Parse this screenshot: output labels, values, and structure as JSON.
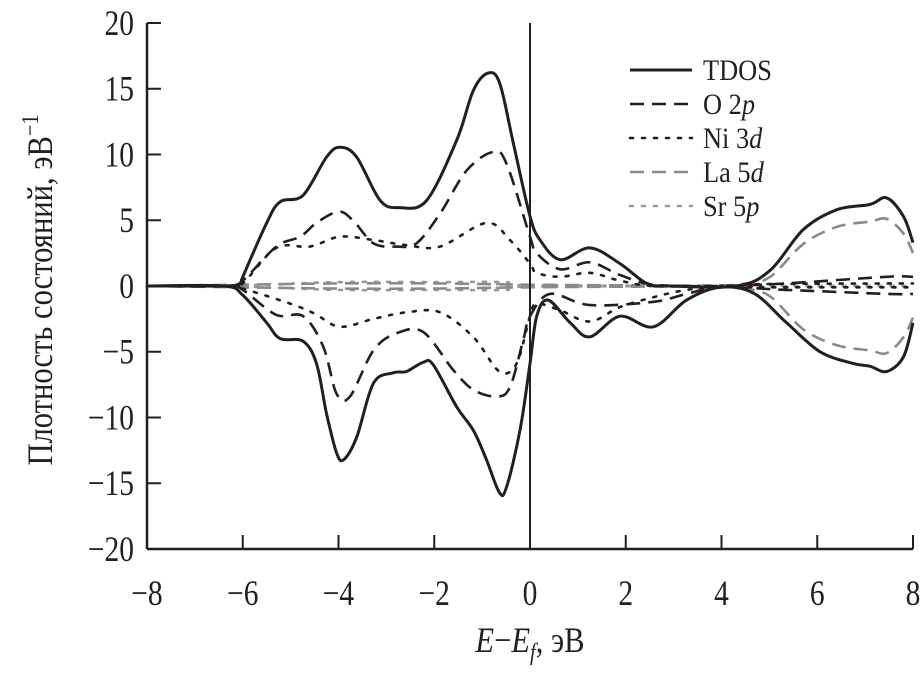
{
  "chart_data": {
    "type": "line",
    "title": "",
    "xlabel": {
      "main": "E",
      "minus": "−",
      "sub_main": "E",
      "sub": "f",
      "unit": ", эВ"
    },
    "ylabel": {
      "text": "Плотность состояний, эВ",
      "sup": "−1"
    },
    "xlim": [
      -8,
      8
    ],
    "ylim": [
      -20,
      20
    ],
    "xticks": [
      "−8",
      "−6",
      "−4",
      "−2",
      "0",
      "2",
      "4",
      "6",
      "8"
    ],
    "xtick_values": [
      -8,
      -6,
      -4,
      -2,
      0,
      2,
      4,
      6,
      8
    ],
    "yticks": [
      "20",
      "15",
      "10",
      "5",
      "0",
      "−5",
      "−10",
      "−15",
      "−20"
    ],
    "ytick_values": [
      20,
      15,
      10,
      5,
      0,
      -5,
      -10,
      -15,
      -20
    ],
    "grid": false,
    "fermi_level_line": 0,
    "legend_position": "top-right",
    "series": [
      {
        "name": "TDOS",
        "label_main": "TDOS",
        "label_italic": "",
        "color": "#231f20",
        "dash": "solid",
        "up": [
          [
            -8,
            0
          ],
          [
            -6.4,
            0
          ],
          [
            -6.06,
            0.2
          ],
          [
            -6.0,
            0.7
          ],
          [
            -5.5,
            4.8
          ],
          [
            -5.22,
            6.4
          ],
          [
            -4.74,
            6.9
          ],
          [
            -4.25,
            9.8
          ],
          [
            -3.97,
            10.55
          ],
          [
            -3.62,
            9.8
          ],
          [
            -3.13,
            6.5
          ],
          [
            -2.72,
            5.96
          ],
          [
            -2.16,
            6.5
          ],
          [
            -1.53,
            11.1
          ],
          [
            -1.18,
            14.9
          ],
          [
            -0.87,
            16.2
          ],
          [
            -0.63,
            15.4
          ],
          [
            -0.35,
            10.9
          ],
          [
            0,
            5.3
          ],
          [
            0.21,
            3.5
          ],
          [
            0.63,
            2.0
          ],
          [
            1.25,
            2.9
          ],
          [
            1.88,
            1.7
          ],
          [
            2.44,
            0.2
          ],
          [
            2.93,
            0
          ],
          [
            4.32,
            0
          ],
          [
            5.02,
            1.2
          ],
          [
            5.71,
            4.3
          ],
          [
            6.41,
            5.8
          ],
          [
            7.1,
            6.2
          ],
          [
            7.45,
            6.7
          ],
          [
            7.8,
            5.3
          ],
          [
            8,
            3.3
          ]
        ],
        "down": [
          [
            -8,
            0
          ],
          [
            -6.4,
            0
          ],
          [
            -6.0,
            -0.7
          ],
          [
            -5.5,
            -2.8
          ],
          [
            -5.22,
            -4.0
          ],
          [
            -4.74,
            -4.2
          ],
          [
            -4.46,
            -5.9
          ],
          [
            -4.25,
            -9.7
          ],
          [
            -4.04,
            -12.7
          ],
          [
            -3.89,
            -13.2
          ],
          [
            -3.62,
            -11.5
          ],
          [
            -3.27,
            -7.4
          ],
          [
            -2.86,
            -6.6
          ],
          [
            -2.58,
            -6.5
          ],
          [
            -2.23,
            -5.8
          ],
          [
            -2.02,
            -6.0
          ],
          [
            -1.53,
            -9.2
          ],
          [
            -1.18,
            -11.0
          ],
          [
            -0.91,
            -13.2
          ],
          [
            -0.64,
            -15.7
          ],
          [
            -0.49,
            -15.3
          ],
          [
            -0.21,
            -11.0
          ],
          [
            0,
            -5.9
          ],
          [
            0.14,
            -2.3
          ],
          [
            0.38,
            -1.07
          ],
          [
            0.84,
            -2.8
          ],
          [
            1.25,
            -3.86
          ],
          [
            1.88,
            -2.3
          ],
          [
            2.58,
            -3.1
          ],
          [
            3.27,
            -1.07
          ],
          [
            3.97,
            -0.1
          ],
          [
            4.67,
            -0.55
          ],
          [
            5.36,
            -2.8
          ],
          [
            6.06,
            -5.0
          ],
          [
            6.76,
            -5.9
          ],
          [
            7.1,
            -6.1
          ],
          [
            7.45,
            -6.5
          ],
          [
            7.8,
            -5.4
          ],
          [
            8,
            -2.8
          ]
        ]
      },
      {
        "name": "O 2p",
        "label_main": "O 2",
        "label_italic": "p",
        "color": "#231f20",
        "dash": "dashed",
        "up": [
          [
            -8,
            0
          ],
          [
            -6.3,
            0
          ],
          [
            -6,
            0.4
          ],
          [
            -5.3,
            3.0
          ],
          [
            -4.8,
            3.75
          ],
          [
            -4.46,
            4.8
          ],
          [
            -4.0,
            5.65
          ],
          [
            -3.7,
            5.0
          ],
          [
            -3.27,
            3.25
          ],
          [
            -2.79,
            3.0
          ],
          [
            -2.37,
            3.25
          ],
          [
            -1.88,
            5.5
          ],
          [
            -1.32,
            8.8
          ],
          [
            -0.77,
            10.2
          ],
          [
            -0.49,
            9.3
          ],
          [
            0,
            3.75
          ],
          [
            0.14,
            2.5
          ],
          [
            0.63,
            1.27
          ],
          [
            1.25,
            1.8
          ],
          [
            1.88,
            0.84
          ],
          [
            2.58,
            0.1
          ],
          [
            3.97,
            0
          ],
          [
            5.36,
            0.2
          ],
          [
            7.45,
            0.7
          ],
          [
            8,
            0.7
          ]
        ],
        "down": [
          [
            -8,
            0
          ],
          [
            -6.3,
            0
          ],
          [
            -6,
            -0.3
          ],
          [
            -5.3,
            -2.2
          ],
          [
            -4.74,
            -2.3
          ],
          [
            -4.32,
            -4.6
          ],
          [
            -4.04,
            -8.2
          ],
          [
            -3.76,
            -8.4
          ],
          [
            -3.27,
            -4.9
          ],
          [
            -2.79,
            -3.6
          ],
          [
            -2.23,
            -3.5
          ],
          [
            -1.6,
            -6.4
          ],
          [
            -1.18,
            -7.9
          ],
          [
            -0.7,
            -8.4
          ],
          [
            -0.42,
            -7.7
          ],
          [
            -0.14,
            -4.1
          ],
          [
            0,
            -2.3
          ],
          [
            0.42,
            -0.6
          ],
          [
            1.25,
            -1.45
          ],
          [
            2.58,
            -1.2
          ],
          [
            3.27,
            -0.6
          ],
          [
            3.97,
            -0.1
          ],
          [
            5.36,
            -0.3
          ],
          [
            7.45,
            -0.6
          ],
          [
            8,
            -0.6
          ]
        ]
      },
      {
        "name": "Ni 3d",
        "label_main": "Ni 3",
        "label_italic": "d",
        "color": "#231f20",
        "dash": "dotted",
        "up": [
          [
            -8,
            0
          ],
          [
            -6.3,
            0
          ],
          [
            -6,
            0.2
          ],
          [
            -5.3,
            2.9
          ],
          [
            -4.6,
            3.0
          ],
          [
            -3.97,
            3.75
          ],
          [
            -3.27,
            3.5
          ],
          [
            -2.58,
            3.1
          ],
          [
            -1.88,
            3.0
          ],
          [
            -0.91,
            4.8
          ],
          [
            -0.42,
            3.5
          ],
          [
            0,
            1.7
          ],
          [
            0.14,
            1.0
          ],
          [
            0.63,
            0.7
          ],
          [
            1.25,
            1.0
          ],
          [
            1.88,
            0.4
          ],
          [
            2.58,
            0
          ],
          [
            4,
            0
          ],
          [
            5,
            0.15
          ],
          [
            8,
            0.2
          ]
        ],
        "down": [
          [
            -8,
            0
          ],
          [
            -6.3,
            0
          ],
          [
            -6,
            -0.2
          ],
          [
            -5.0,
            -1.35
          ],
          [
            -4.5,
            -2.1
          ],
          [
            -3.97,
            -3.1
          ],
          [
            -3.27,
            -2.5
          ],
          [
            -2.58,
            -2.0
          ],
          [
            -1.88,
            -2.0
          ],
          [
            -1.18,
            -3.9
          ],
          [
            -0.64,
            -6.5
          ],
          [
            -0.28,
            -5.9
          ],
          [
            0,
            -2.3
          ],
          [
            0.14,
            -1.35
          ],
          [
            0.63,
            -1.85
          ],
          [
            1.25,
            -2.7
          ],
          [
            1.88,
            -1.6
          ],
          [
            2.58,
            -0.85
          ],
          [
            3.27,
            -0.3
          ],
          [
            3.97,
            -0.1
          ],
          [
            5,
            -0.1
          ],
          [
            8,
            -0.1
          ]
        ]
      },
      {
        "name": "La 5d",
        "label_main": "La 5",
        "label_italic": "d",
        "color": "#8a8a8a",
        "dash": "dashed",
        "up": [
          [
            -8,
            0
          ],
          [
            -6,
            0.1
          ],
          [
            -4,
            0.2
          ],
          [
            -2,
            0.2
          ],
          [
            0,
            0.1
          ],
          [
            2,
            0.05
          ],
          [
            4,
            0.05
          ],
          [
            4.5,
            0.2
          ],
          [
            5.02,
            0.7
          ],
          [
            5.71,
            3.2
          ],
          [
            6.41,
            4.5
          ],
          [
            7.1,
            4.9
          ],
          [
            7.45,
            5.1
          ],
          [
            7.8,
            4.0
          ],
          [
            8,
            2.5
          ]
        ],
        "down": [
          [
            -8,
            0
          ],
          [
            -6,
            -0.1
          ],
          [
            -4,
            -0.2
          ],
          [
            -2,
            -0.2
          ],
          [
            0,
            -0.1
          ],
          [
            2,
            -0.05
          ],
          [
            4,
            -0.05
          ],
          [
            4.5,
            -0.2
          ],
          [
            5.02,
            -0.8
          ],
          [
            5.71,
            -3.3
          ],
          [
            6.41,
            -4.5
          ],
          [
            7.1,
            -4.9
          ],
          [
            7.45,
            -5.1
          ],
          [
            7.8,
            -3.9
          ],
          [
            8,
            -2.4
          ]
        ]
      },
      {
        "name": "Sr 5p",
        "label_main": "Sr 5",
        "label_italic": "p",
        "color": "#9a9a9a",
        "dash": "dotted",
        "up": [
          [
            -8,
            0
          ],
          [
            -6,
            0.05
          ],
          [
            -4,
            0.3
          ],
          [
            -2,
            0.3
          ],
          [
            -0.5,
            0.3
          ],
          [
            0,
            0.05
          ],
          [
            8,
            0
          ]
        ],
        "down": [
          [
            -8,
            0
          ],
          [
            -6,
            -0.05
          ],
          [
            -4,
            -0.3
          ],
          [
            -2,
            -0.3
          ],
          [
            -0.5,
            -0.3
          ],
          [
            0,
            -0.05
          ],
          [
            8,
            0
          ]
        ]
      }
    ]
  }
}
